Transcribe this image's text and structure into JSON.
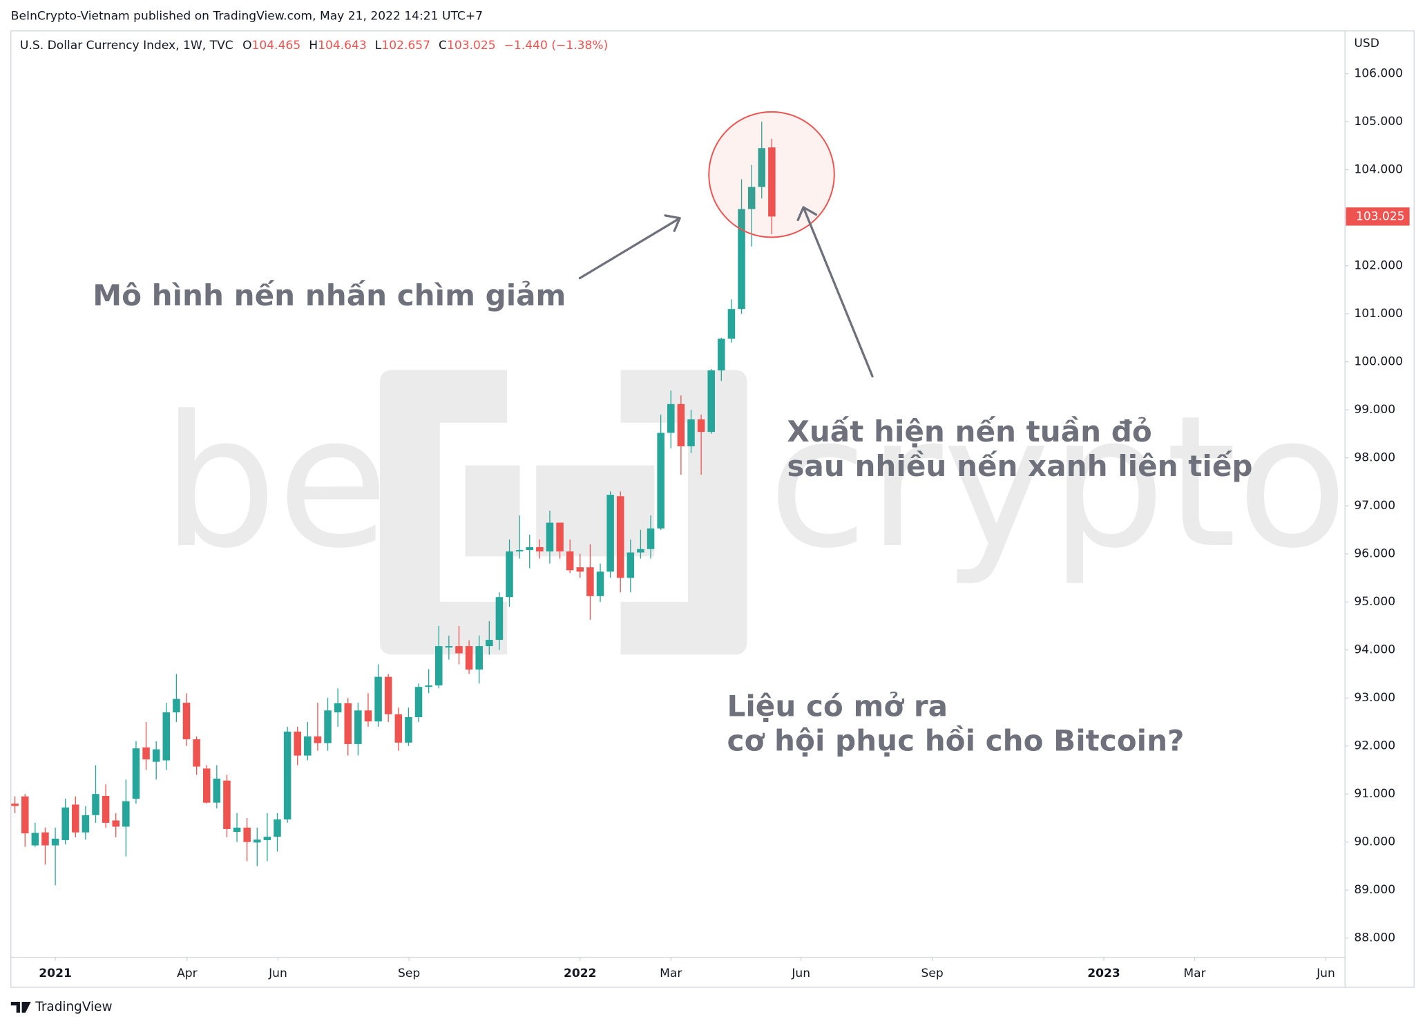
{
  "header": {
    "publisher": "BeInCrypto-Vietnam published on TradingView.com, May 21, 2022 14:21 UTC+7",
    "footer": "TradingView"
  },
  "chart_data": {
    "type": "candlestick",
    "symbol": "U.S. Dollar Currency Index, 1W, TVC",
    "ohlc_labels": [
      "O",
      "H",
      "L",
      "C"
    ],
    "change": "−1.440 (−1.38%)",
    "currency": "USD",
    "watermark": [
      "be",
      "crypto"
    ],
    "annotations": [
      "Mô hình nến nhấn chìm giảm",
      "Xuất hiện nến tuần đỏ",
      "sau nhiều nến xanh liên tiếp",
      "Liệu có mở ra",
      "cơ hội phục hồi cho Bitcoin?"
    ],
    "up_color": "#26a69a",
    "down_color": "#ef5350",
    "grid": false,
    "x": [
      -4,
      -3,
      -2,
      -1,
      0,
      1,
      2,
      3,
      4,
      5,
      6,
      7,
      8,
      9,
      10,
      11,
      12,
      13,
      14,
      15,
      16,
      17,
      18,
      19,
      20,
      21,
      22,
      23,
      24,
      25,
      26,
      27,
      28,
      29,
      30,
      31,
      32,
      33,
      34,
      35,
      36,
      37,
      38,
      39,
      40,
      41,
      42,
      43,
      44,
      45,
      46,
      47,
      48,
      49,
      50,
      51,
      52,
      53,
      54,
      55,
      56,
      57,
      58,
      59,
      60,
      61,
      62,
      63,
      64,
      65,
      66,
      67,
      68,
      69,
      70,
      71
    ],
    "open": [
      90.8,
      90.95,
      89.93,
      90.2,
      89.93,
      90.04,
      90.78,
      90.2,
      90.56,
      90.96,
      90.45,
      90.32,
      90.9,
      91.97,
      91.67,
      91.7,
      92.7,
      92.9,
      92.14,
      91.53,
      90.82,
      91.28,
      90.21,
      90.3,
      89.99,
      90.04,
      90.11,
      90.47,
      92.3,
      91.8,
      92.2,
      92.06,
      92.7,
      92.89,
      92.04,
      92.74,
      92.51,
      93.44,
      92.66,
      92.07,
      92.6,
      93.23,
      93.26,
      94.05,
      94.08,
      94.08,
      93.59,
      94.08,
      94.21,
      95.1,
      96.05,
      96.08,
      96.14,
      96.05,
      96.65,
      96.05,
      95.72,
      95.72,
      95.12,
      95.63,
      97.2,
      95.5,
      96.03,
      96.1,
      96.53,
      98.52,
      99.12,
      98.24,
      98.8,
      98.54,
      99.82,
      100.48,
      101.1,
      103.18,
      103.64,
      104.465
    ],
    "high": [
      90.95,
      91.0,
      90.4,
      90.3,
      90.3,
      90.9,
      90.95,
      90.75,
      91.6,
      91.2,
      90.6,
      91.3,
      92.1,
      92.5,
      92.1,
      92.9,
      93.5,
      93.1,
      92.2,
      91.6,
      91.6,
      91.4,
      90.6,
      90.5,
      90.3,
      90.6,
      90.6,
      92.4,
      92.4,
      92.5,
      92.9,
      93.0,
      93.2,
      93.0,
      92.9,
      93.1,
      93.7,
      93.5,
      92.8,
      92.8,
      93.3,
      93.6,
      94.5,
      94.3,
      94.5,
      94.2,
      94.3,
      94.6,
      95.2,
      96.3,
      96.8,
      96.4,
      96.3,
      96.9,
      96.65,
      96.3,
      96.0,
      96.2,
      95.8,
      97.3,
      97.3,
      96.3,
      96.5,
      96.8,
      98.9,
      99.4,
      99.3,
      99.0,
      98.9,
      99.85,
      100.5,
      101.3,
      103.8,
      104.1,
      105.0,
      104.643
    ],
    "low": [
      90.6,
      89.9,
      89.9,
      89.53,
      89.1,
      89.95,
      90.1,
      90.05,
      90.4,
      90.3,
      90.1,
      89.7,
      90.8,
      91.5,
      91.3,
      91.5,
      92.5,
      92.0,
      91.4,
      90.8,
      90.7,
      90.1,
      90.0,
      89.6,
      89.5,
      89.6,
      89.8,
      90.4,
      91.6,
      91.7,
      91.9,
      91.9,
      92.4,
      91.8,
      91.8,
      92.4,
      92.4,
      92.5,
      91.9,
      92.0,
      92.5,
      93.1,
      93.2,
      93.8,
      93.7,
      93.5,
      93.3,
      93.9,
      94.0,
      94.9,
      95.9,
      95.7,
      95.9,
      95.8,
      95.9,
      95.6,
      95.5,
      94.63,
      95.0,
      95.5,
      95.2,
      95.2,
      95.9,
      95.9,
      96.5,
      98.2,
      97.65,
      98.1,
      97.65,
      98.5,
      99.6,
      100.4,
      101.0,
      102.4,
      103.4,
      102.657
    ],
    "close": [
      90.75,
      90.18,
      90.19,
      89.93,
      90.07,
      90.72,
      90.2,
      90.56,
      91.0,
      90.4,
      90.32,
      90.85,
      91.95,
      91.72,
      91.93,
      92.7,
      92.98,
      92.14,
      91.57,
      90.82,
      91.32,
      90.27,
      90.3,
      90.0,
      90.05,
      90.11,
      90.47,
      92.3,
      91.8,
      92.2,
      92.06,
      92.74,
      92.89,
      92.04,
      92.74,
      92.51,
      93.44,
      92.66,
      92.07,
      92.6,
      93.23,
      93.26,
      94.08,
      94.08,
      93.93,
      93.59,
      94.08,
      94.21,
      95.1,
      96.05,
      96.08,
      96.14,
      96.05,
      96.65,
      96.05,
      95.66,
      95.63,
      95.12,
      95.63,
      97.23,
      95.5,
      96.03,
      96.1,
      96.53,
      98.52,
      99.12,
      98.24,
      98.8,
      98.54,
      99.82,
      100.48,
      101.1,
      103.18,
      103.64,
      104.45,
      103.025
    ],
    "xlim": [
      -4.4,
      127.8
    ],
    "xticks": [
      {
        "value": 0,
        "label": "2021"
      },
      {
        "value": 13.06,
        "label": "Apr"
      },
      {
        "value": 22.07,
        "label": "Jun"
      },
      {
        "value": 35.05,
        "label": "Sep"
      },
      {
        "value": 52,
        "label": "2022"
      },
      {
        "value": 61,
        "label": "Mar"
      },
      {
        "value": 73.9,
        "label": "Jun"
      },
      {
        "value": 86.9,
        "label": "Sep"
      },
      {
        "value": 103.9,
        "label": "2023"
      },
      {
        "value": 112.9,
        "label": "Mar"
      },
      {
        "value": 125.9,
        "label": "Jun"
      }
    ],
    "ylim": [
      87.6,
      106.89
    ],
    "yticks": [
      {
        "value": 88,
        "label": "88.000"
      },
      {
        "value": 89,
        "label": "89.000"
      },
      {
        "value": 90,
        "label": "90.000"
      },
      {
        "value": 91,
        "label": "91.000"
      },
      {
        "value": 92,
        "label": "92.000"
      },
      {
        "value": 93,
        "label": "93.000"
      },
      {
        "value": 94,
        "label": "94.000"
      },
      {
        "value": 95,
        "label": "95.000"
      },
      {
        "value": 96,
        "label": "96.000"
      },
      {
        "value": 97,
        "label": "97.000"
      },
      {
        "value": 98,
        "label": "98.000"
      },
      {
        "value": 99,
        "label": "99.000"
      },
      {
        "value": 100,
        "label": "100.000"
      },
      {
        "value": 101,
        "label": "101.000"
      },
      {
        "value": 102,
        "label": "102.000"
      },
      {
        "value": 103,
        "label": "103.000"
      },
      {
        "value": 104,
        "label": "104.000"
      },
      {
        "value": 105,
        "label": "105.000"
      },
      {
        "value": 106,
        "label": "106.000"
      }
    ]
  }
}
